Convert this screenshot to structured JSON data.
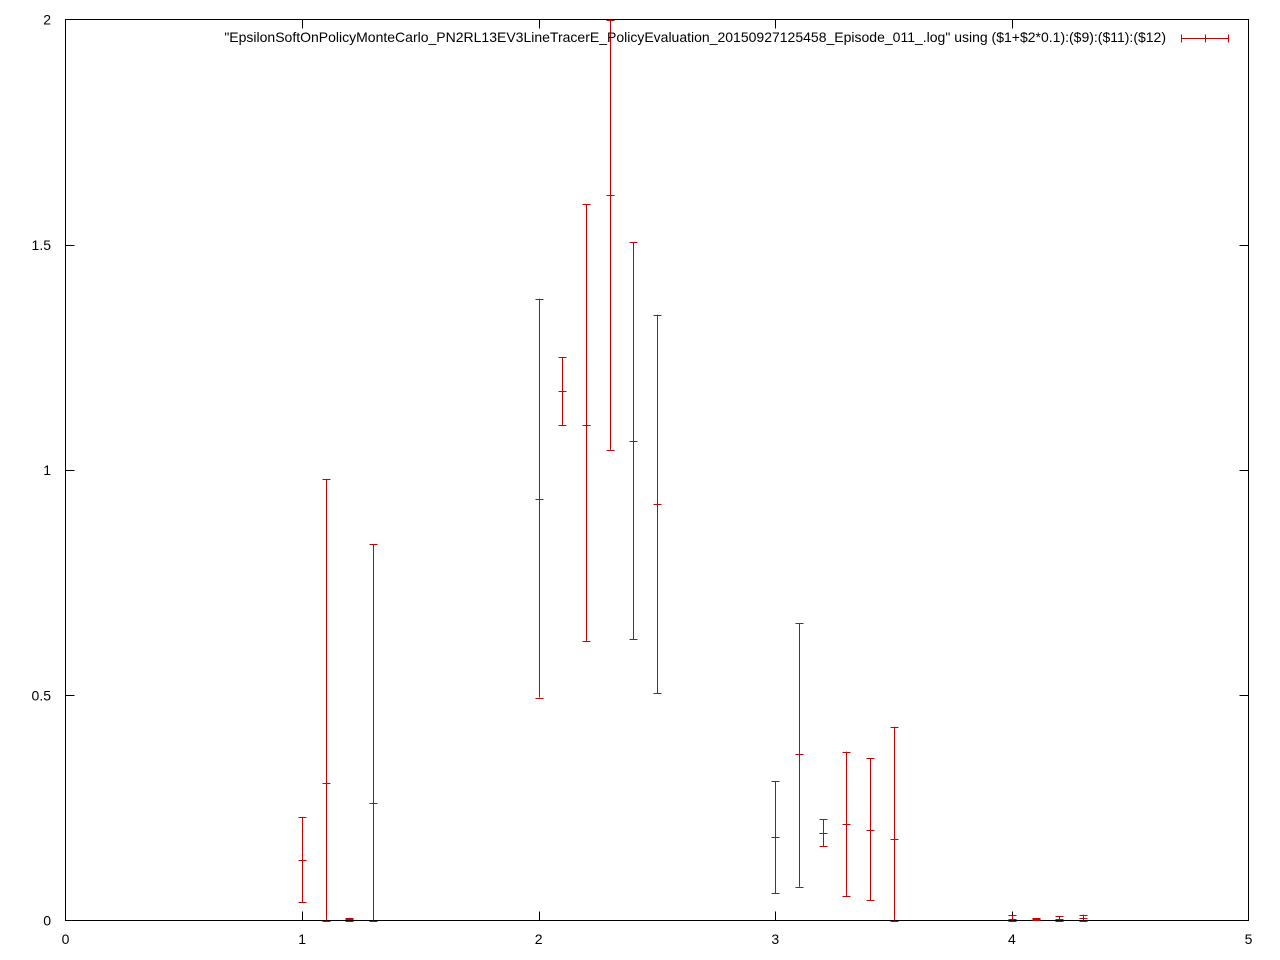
{
  "chart_data": {
    "type": "errorbar",
    "title": "",
    "xlabel": "",
    "ylabel": "",
    "xlim": [
      0,
      5
    ],
    "ylim": [
      0,
      2
    ],
    "x_ticks": [
      "0",
      "1",
      "2",
      "3",
      "4",
      "5"
    ],
    "y_ticks": [
      "0",
      "0.5",
      "1",
      "1.5",
      "2"
    ],
    "x_tick_values": [
      0,
      1,
      2,
      3,
      4,
      5
    ],
    "y_tick_values": [
      0,
      0.5,
      1,
      1.5,
      2
    ],
    "grid": false,
    "legend_position": "top-right",
    "series": [
      {
        "name": "\"EpsilonSoftOnPolicyMonteCarlo_PN2RL13EV3LineTracerE_PolicyEvaluation_20150927125458_Episode_011_.log\" using ($1+$2*0.1):($9):($11):($12)",
        "color": "#cc0000",
        "points": [
          {
            "x": 1.0,
            "y": 0.135,
            "low": 0.04,
            "high": 0.23
          },
          {
            "x": 1.1,
            "y": 0.305,
            "low": 0.0,
            "high": 0.98
          },
          {
            "x": 1.2,
            "y": 0.003,
            "low": 0.0,
            "high": 0.006
          },
          {
            "x": 1.3,
            "y": 0.26,
            "low": 0.0,
            "high": 0.835
          },
          {
            "x": 2.0,
            "y": 0.935,
            "low": 0.495,
            "high": 1.38
          },
          {
            "x": 2.1,
            "y": 1.175,
            "low": 1.1,
            "high": 1.25
          },
          {
            "x": 2.2,
            "y": 1.1,
            "low": 0.62,
            "high": 1.59
          },
          {
            "x": 2.3,
            "y": 1.61,
            "low": 1.045,
            "high": 2.0
          },
          {
            "x": 2.4,
            "y": 1.065,
            "low": 0.625,
            "high": 1.505
          },
          {
            "x": 2.5,
            "y": 0.925,
            "low": 0.505,
            "high": 1.345
          },
          {
            "x": 3.0,
            "y": 0.185,
            "low": 0.06,
            "high": 0.31
          },
          {
            "x": 3.1,
            "y": 0.37,
            "low": 0.075,
            "high": 0.66
          },
          {
            "x": 3.2,
            "y": 0.195,
            "low": 0.165,
            "high": 0.225
          },
          {
            "x": 3.3,
            "y": 0.215,
            "low": 0.055,
            "high": 0.375
          },
          {
            "x": 3.4,
            "y": 0.2,
            "low": 0.045,
            "high": 0.36
          },
          {
            "x": 3.5,
            "y": 0.18,
            "low": 0.0,
            "high": 0.43
          },
          {
            "x": 4.0,
            "y": 0.003,
            "low": 0.0,
            "high": 0.012
          },
          {
            "x": 4.1,
            "y": 0.003,
            "low": 0.001,
            "high": 0.005
          },
          {
            "x": 4.2,
            "y": 0.004,
            "low": 0.0,
            "high": 0.01
          },
          {
            "x": 4.3,
            "y": 0.006,
            "low": 0.0,
            "high": 0.013
          }
        ]
      }
    ]
  }
}
